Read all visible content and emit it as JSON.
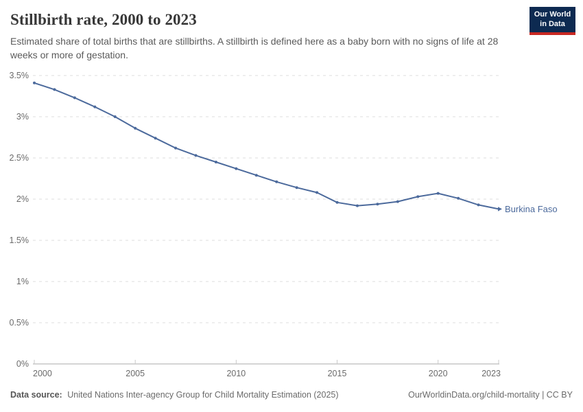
{
  "header": {
    "title": "Stillbirth rate, 2000 to 2023",
    "subtitle": "Estimated share of total births that are stillbirths. A stillbirth is defined here as a baby born with no signs of life at 28 weeks or more of gestation.",
    "logo": {
      "line1": "Our World",
      "line2": "in Data",
      "bg_color": "#0d2a51",
      "accent_color": "#c82823"
    }
  },
  "chart_data": {
    "type": "line",
    "title": "Stillbirth rate, 2000 to 2023",
    "x": [
      2000,
      2001,
      2002,
      2003,
      2004,
      2005,
      2006,
      2007,
      2008,
      2009,
      2010,
      2011,
      2012,
      2013,
      2014,
      2015,
      2016,
      2017,
      2018,
      2019,
      2020,
      2021,
      2022,
      2023
    ],
    "series": [
      {
        "name": "Burkina Faso",
        "color": "#4C6A9C",
        "values": [
          3.41,
          3.33,
          3.23,
          3.12,
          3.0,
          2.86,
          2.74,
          2.62,
          2.53,
          2.45,
          2.37,
          2.29,
          2.21,
          2.14,
          2.08,
          1.96,
          1.92,
          1.94,
          1.97,
          2.03,
          2.07,
          2.01,
          1.93,
          1.88
        ]
      }
    ],
    "unit": "%",
    "xlabel": "",
    "ylabel": "",
    "ylim": [
      0,
      3.5
    ],
    "yticks": [
      0,
      0.5,
      1,
      1.5,
      2,
      2.5,
      3,
      3.5
    ],
    "ytick_labels": [
      "0%",
      "0.5%",
      "1%",
      "1.5%",
      "2%",
      "2.5%",
      "3%",
      "3.5%"
    ],
    "xticks": [
      2000,
      2005,
      2010,
      2015,
      2020,
      2023
    ],
    "grid": "horizontal-dashed",
    "legend_position": "line-end-label"
  },
  "footer": {
    "source_label": "Data source:",
    "source_text": "United Nations Inter-agency Group for Child Mortality Estimation (2025)",
    "attribution": "OurWorldinData.org/child-mortality | CC BY"
  }
}
